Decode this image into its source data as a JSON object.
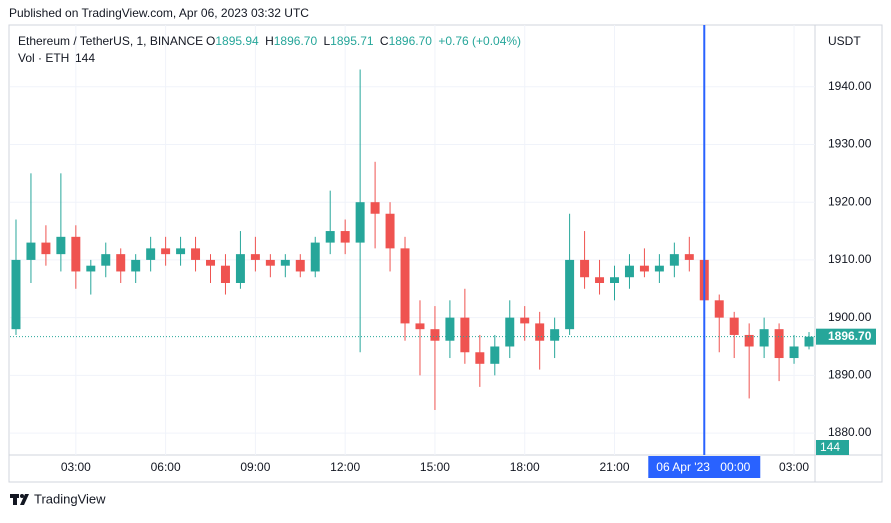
{
  "header": {
    "published": "Published on TradingView.com, Apr 06, 2023 03:32 UTC"
  },
  "legend": {
    "symbol": "Ethereum / TetherUS, 1, BINANCE",
    "o_label": "O",
    "o": "1895.94",
    "h_label": "H",
    "h": "1896.70",
    "l_label": "L",
    "l": "1895.71",
    "c_label": "C",
    "c": "1896.70",
    "change": "+0.76 (+0.04%)",
    "vol_label": "Vol · ETH",
    "vol": "144"
  },
  "footer": {
    "brand": "TradingView"
  },
  "chart_data": {
    "type": "candlestick",
    "currency": "USDT",
    "up_color": "#26a69a",
    "down_color": "#ef5350",
    "x": [
      1.0,
      1.5,
      2.0,
      2.5,
      3.0,
      3.5,
      4.0,
      4.5,
      5.0,
      5.5,
      6.0,
      6.5,
      7.0,
      7.5,
      8.0,
      8.5,
      9.0,
      9.5,
      10.0,
      10.5,
      11.0,
      11.5,
      12.0,
      12.5,
      13.0,
      13.5,
      14.0,
      14.5,
      15.0,
      15.5,
      16.0,
      16.5,
      17.0,
      17.5,
      18.0,
      18.5,
      19.0,
      19.5,
      20.0,
      20.5,
      21.0,
      21.5,
      22.0,
      22.5,
      23.0,
      23.5,
      24.0,
      24.5,
      25.0,
      25.5,
      26.0,
      26.5,
      27.0,
      27.5
    ],
    "open": [
      1898,
      1910,
      1913,
      1911,
      1914,
      1908,
      1909,
      1911,
      1908,
      1910,
      1912,
      1911,
      1912,
      1910,
      1909,
      1906,
      1911,
      1910,
      1909,
      1910,
      1908,
      1913,
      1915,
      1913,
      1920,
      1918,
      1912,
      1899,
      1898,
      1896,
      1900,
      1894,
      1892,
      1895,
      1900,
      1899,
      1896,
      1898,
      1910,
      1907,
      1906,
      1907,
      1909,
      1908,
      1909,
      1911,
      1910,
      1903,
      1900,
      1897,
      1895,
      1898,
      1893,
      1895
    ],
    "high": [
      1917,
      1925,
      1916,
      1925,
      1916,
      1910,
      1913,
      1912,
      1911,
      1914,
      1914,
      1914,
      1914,
      1911,
      1911,
      1915,
      1914,
      1911,
      1911,
      1911,
      1914,
      1922,
      1917,
      1943,
      1927,
      1920,
      1914,
      1903,
      1902,
      1903,
      1905,
      1897,
      1897,
      1903,
      1902,
      1901,
      1900,
      1918,
      1915,
      1910,
      1909,
      1911,
      1912,
      1911,
      1913,
      1914,
      1912,
      1904,
      1901,
      1899,
      1900,
      1899,
      1897,
      1897.5
    ],
    "low": [
      1897,
      1906,
      1909,
      1908,
      1905,
      1904,
      1907,
      1906,
      1906,
      1908,
      1909,
      1909,
      1908,
      1906,
      1904,
      1905,
      1908,
      1907,
      1907,
      1907,
      1907,
      1911,
      1911,
      1894,
      1912,
      1908,
      1896,
      1890,
      1884,
      1893,
      1892,
      1888,
      1890,
      1893,
      1896,
      1891,
      1893,
      1897,
      1905,
      1904,
      1903,
      1905,
      1907,
      1906,
      1907,
      1908,
      1900,
      1894,
      1893,
      1886,
      1893,
      1889,
      1892,
      1894.5
    ],
    "close": [
      1910,
      1913,
      1911,
      1914,
      1908,
      1909,
      1911,
      1908,
      1910,
      1912,
      1911,
      1912,
      1910,
      1909,
      1906,
      1911,
      1910,
      1909,
      1910,
      1908,
      1913,
      1915,
      1913,
      1920,
      1918,
      1912,
      1899,
      1898,
      1896,
      1900,
      1894,
      1892,
      1895,
      1900,
      1899,
      1896,
      1898,
      1910,
      1907,
      1906,
      1907,
      1909,
      1908,
      1909,
      1911,
      1910,
      1903,
      1900,
      1897,
      1895,
      1898,
      1893,
      1895,
      1896.7
    ],
    "xlim": [
      0.8,
      27.7
    ],
    "xticks": [
      {
        "value": 3,
        "label": "03:00"
      },
      {
        "value": 6,
        "label": "06:00"
      },
      {
        "value": 9,
        "label": "09:00"
      },
      {
        "value": 12,
        "label": "12:00"
      },
      {
        "value": 15,
        "label": "15:00"
      },
      {
        "value": 18,
        "label": "18:00"
      },
      {
        "value": 21,
        "label": "21:00"
      },
      {
        "value": 27,
        "label": "03:00"
      }
    ],
    "ylim": [
      1876.2,
      1950.7
    ],
    "yticks": [
      {
        "value": 1880,
        "label": "1880.00"
      },
      {
        "value": 1890,
        "label": "1890.00"
      },
      {
        "value": 1900,
        "label": "1900.00"
      },
      {
        "value": 1910,
        "label": "1910.00"
      },
      {
        "value": 1920,
        "label": "1920.00"
      },
      {
        "value": 1930,
        "label": "1930.00"
      },
      {
        "value": 1940,
        "label": "1940.00"
      }
    ],
    "grid": true,
    "last_price": {
      "value": 1896.7,
      "label": "1896.70"
    },
    "crosshair": {
      "x": 24,
      "date_label": "06 Apr '23",
      "time_label": "00:00"
    }
  }
}
